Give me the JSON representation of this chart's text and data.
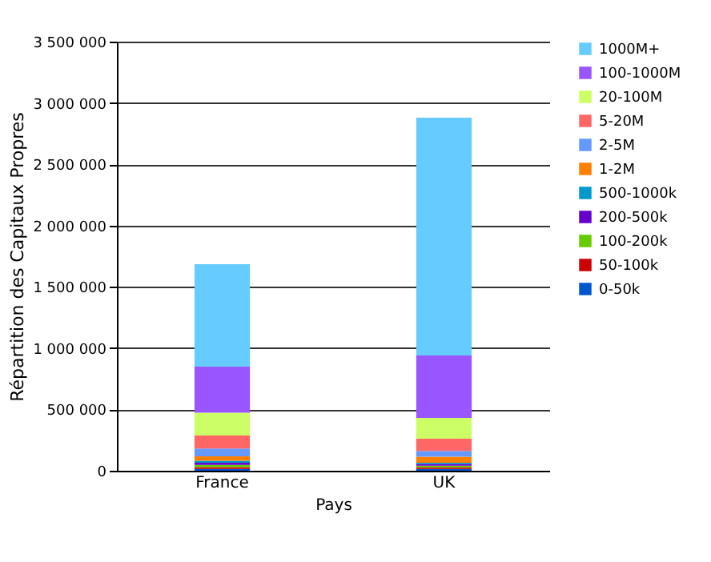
{
  "chart_data": {
    "type": "bar",
    "stacked": true,
    "xlabel": "Pays",
    "ylabel": "Répartition des Capitaux Propres",
    "categories": [
      "France",
      "UK"
    ],
    "ylim": [
      0,
      3500000
    ],
    "yticks": [
      0,
      500000,
      1000000,
      1500000,
      2000000,
      2500000,
      3000000,
      3500000
    ],
    "grid": "y",
    "legend": "right",
    "series": [
      {
        "name": "0-50k",
        "color": "#0055cc",
        "values": [
          15000,
          15000
        ]
      },
      {
        "name": "50-100k",
        "color": "#cc0000",
        "values": [
          15000,
          12000
        ]
      },
      {
        "name": "100-200k",
        "color": "#66cc00",
        "values": [
          18000,
          13000
        ]
      },
      {
        "name": "200-500k",
        "color": "#6600cc",
        "values": [
          18000,
          15000
        ]
      },
      {
        "name": "500-1000k",
        "color": "#0099cc",
        "values": [
          16000,
          10000
        ]
      },
      {
        "name": "1-2M",
        "color": "#ff8000",
        "values": [
          35000,
          49000
        ]
      },
      {
        "name": "2-5M",
        "color": "#6699ff",
        "values": [
          65000,
          47000
        ]
      },
      {
        "name": "5-20M",
        "color": "#ff6666",
        "values": [
          105000,
          100000
        ]
      },
      {
        "name": "20-100M",
        "color": "#ccff66",
        "values": [
          187000,
          170000
        ]
      },
      {
        "name": "100-1000M",
        "color": "#9955ff",
        "values": [
          375000,
          509000
        ]
      },
      {
        "name": "1000M+",
        "color": "#66ccff",
        "values": [
          836000,
          1940000
        ]
      }
    ]
  }
}
